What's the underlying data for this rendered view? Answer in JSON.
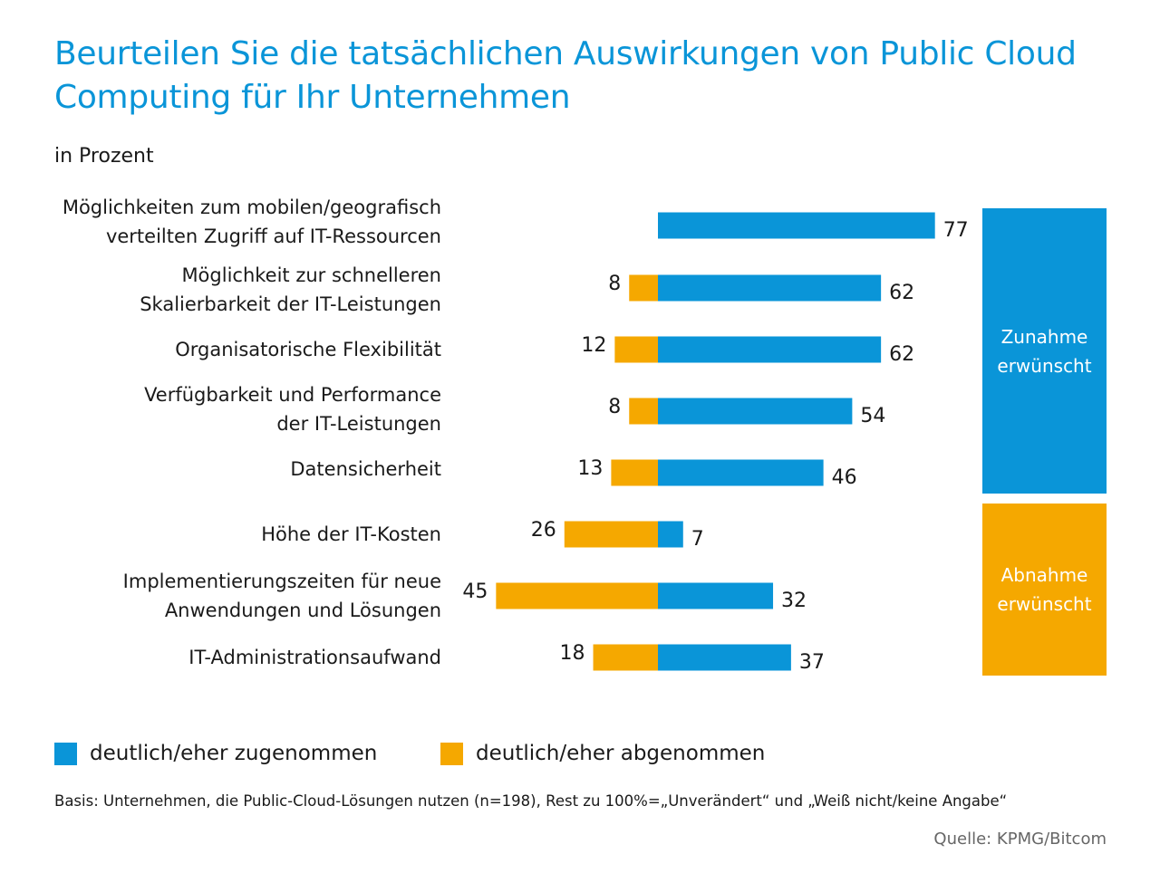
{
  "title": {
    "line1": "Beurteilen Sie die tatsächlichen Auswirkungen von Public Cloud",
    "line2": "Computing für Ihr Unternehmen"
  },
  "unit_label": "in Prozent",
  "colors": {
    "title": "#0a95d8",
    "increase": "#0a95d8",
    "decrease": "#f5a800"
  },
  "chart_data": {
    "type": "bar",
    "orientation": "horizontal-diverging",
    "categories": [
      [
        "Möglichkeiten zum mobilen/geografisch",
        "verteilten Zugriff auf IT-Ressourcen"
      ],
      [
        "Möglichkeit zur schnelleren",
        "Skalierbarkeit der IT-Leistungen"
      ],
      [
        "Organisatorische Flexibilität"
      ],
      [
        "Verfügbarkeit und Performance",
        "der IT-Leistungen"
      ],
      [
        "Datensicherheit"
      ],
      [
        "Höhe der IT-Kosten"
      ],
      [
        "Implementierungszeiten für neue",
        "Anwendungen und Lösungen"
      ],
      [
        "IT-Administrationsaufwand"
      ]
    ],
    "series": [
      {
        "name": "deutlich/eher zugenommen",
        "color": "#0a95d8",
        "values": [
          77,
          62,
          62,
          54,
          46,
          7,
          32,
          37
        ]
      },
      {
        "name": "deutlich/eher abgenommen",
        "color": "#f5a800",
        "values": [
          null,
          8,
          12,
          8,
          13,
          26,
          45,
          18
        ]
      }
    ],
    "groups": [
      {
        "label": [
          "Zunahme",
          "erwünscht"
        ],
        "color": "#0a95d8",
        "categories": [
          0,
          1,
          2,
          3,
          4
        ]
      },
      {
        "label": [
          "Abnahme",
          "erwünscht"
        ],
        "color": "#f5a800",
        "categories": [
          5,
          6,
          7
        ]
      }
    ],
    "legend_position": "bottom-left",
    "grid": false
  },
  "footnote": "Basis: Unternehmen, die Public-Cloud-Lösungen nutzen (n=198), Rest zu 100%=„Unverändert“ und „Weiß nicht/keine Angabe“",
  "source": "Quelle: KPMG/Bitcom"
}
